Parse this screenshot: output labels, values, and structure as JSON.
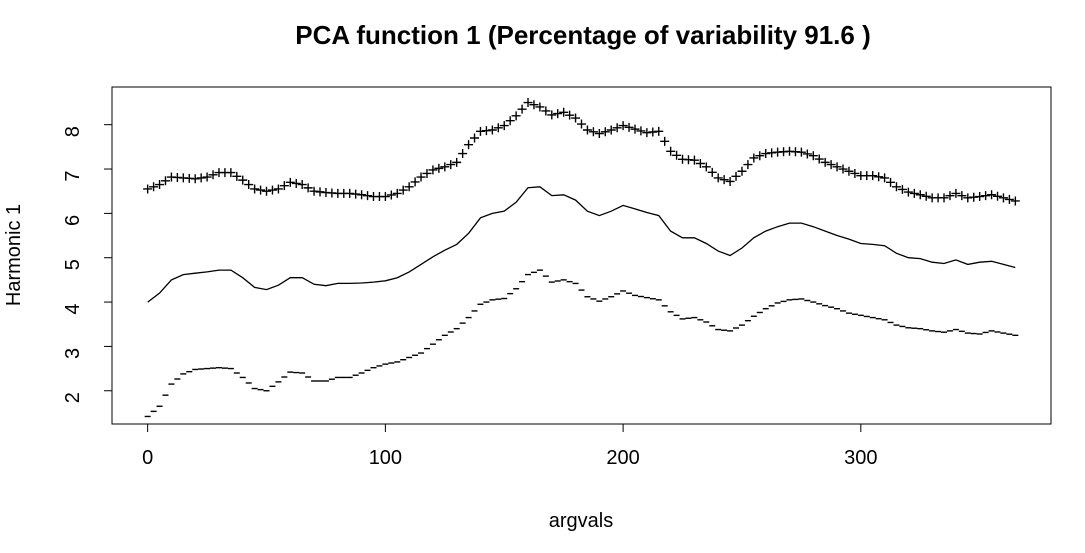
{
  "chart_data": {
    "type": "line",
    "title": "PCA function 1 (Percentage of variability 91.6 )",
    "xlabel": "argvals",
    "ylabel": "Harmonic 1",
    "xlim": [
      -15,
      380
    ],
    "ylim": [
      1.25,
      8.85
    ],
    "xticks": [
      0,
      100,
      200,
      300
    ],
    "yticks": [
      2,
      3,
      4,
      5,
      6,
      7,
      8
    ],
    "grid": false,
    "legend": "none",
    "colors": {
      "line": "#000000",
      "frame": "#000000",
      "background": "#ffffff"
    },
    "x": [
      0,
      5,
      10,
      15,
      20,
      25,
      30,
      35,
      40,
      45,
      50,
      55,
      60,
      65,
      70,
      75,
      80,
      85,
      90,
      95,
      100,
      105,
      110,
      115,
      120,
      125,
      130,
      135,
      140,
      145,
      150,
      155,
      160,
      165,
      170,
      175,
      180,
      185,
      190,
      195,
      200,
      205,
      210,
      215,
      220,
      225,
      230,
      235,
      240,
      245,
      250,
      255,
      260,
      265,
      270,
      275,
      280,
      285,
      290,
      295,
      300,
      305,
      310,
      315,
      320,
      325,
      330,
      335,
      340,
      345,
      350,
      355,
      360,
      365
    ],
    "series": [
      {
        "style": "solid",
        "values": [
          4.0,
          4.2,
          4.5,
          4.62,
          4.65,
          4.68,
          4.72,
          4.72,
          4.55,
          4.33,
          4.28,
          4.38,
          4.55,
          4.55,
          4.4,
          4.37,
          4.42,
          4.42,
          4.43,
          4.45,
          4.48,
          4.55,
          4.68,
          4.85,
          5.02,
          5.17,
          5.3,
          5.55,
          5.9,
          6.0,
          6.05,
          6.25,
          6.58,
          6.6,
          6.4,
          6.42,
          6.3,
          6.05,
          5.95,
          6.05,
          6.18,
          6.1,
          6.02,
          5.95,
          5.6,
          5.45,
          5.45,
          5.32,
          5.15,
          5.05,
          5.22,
          5.45,
          5.6,
          5.7,
          5.78,
          5.78,
          5.7,
          5.6,
          5.5,
          5.42,
          5.32,
          5.3,
          5.27,
          5.1,
          5.0,
          4.98,
          4.9,
          4.87,
          4.95,
          4.85,
          4.9,
          4.92,
          4.85,
          4.78
        ]
      },
      {
        "style": "plus",
        "values": [
          6.55,
          6.65,
          6.82,
          6.8,
          6.78,
          6.82,
          6.92,
          6.92,
          6.75,
          6.55,
          6.5,
          6.55,
          6.7,
          6.65,
          6.5,
          6.47,
          6.45,
          6.45,
          6.42,
          6.38,
          6.38,
          6.45,
          6.6,
          6.82,
          6.98,
          7.05,
          7.15,
          7.55,
          7.85,
          7.88,
          7.98,
          8.2,
          8.5,
          8.4,
          8.22,
          8.28,
          8.15,
          7.88,
          7.8,
          7.88,
          7.98,
          7.9,
          7.82,
          7.85,
          7.4,
          7.22,
          7.2,
          7.05,
          6.8,
          6.72,
          6.95,
          7.25,
          7.35,
          7.38,
          7.4,
          7.38,
          7.3,
          7.15,
          7.05,
          6.95,
          6.85,
          6.85,
          6.8,
          6.6,
          6.48,
          6.42,
          6.35,
          6.35,
          6.45,
          6.35,
          6.38,
          6.42,
          6.35,
          6.28
        ]
      },
      {
        "style": "minus",
        "values": [
          1.42,
          1.65,
          2.15,
          2.38,
          2.48,
          2.5,
          2.52,
          2.5,
          2.3,
          2.05,
          2.0,
          2.2,
          2.42,
          2.4,
          2.22,
          2.22,
          2.3,
          2.3,
          2.4,
          2.52,
          2.6,
          2.65,
          2.75,
          2.85,
          3.05,
          3.25,
          3.4,
          3.65,
          3.95,
          4.05,
          4.08,
          4.3,
          4.62,
          4.72,
          4.45,
          4.5,
          4.42,
          4.12,
          4.02,
          4.12,
          4.25,
          4.15,
          4.1,
          4.05,
          3.78,
          3.62,
          3.65,
          3.55,
          3.38,
          3.35,
          3.48,
          3.68,
          3.85,
          3.98,
          4.05,
          4.07,
          4.0,
          3.92,
          3.85,
          3.75,
          3.7,
          3.65,
          3.6,
          3.48,
          3.42,
          3.4,
          3.35,
          3.32,
          3.38,
          3.3,
          3.28,
          3.35,
          3.3,
          3.25
        ]
      }
    ]
  }
}
